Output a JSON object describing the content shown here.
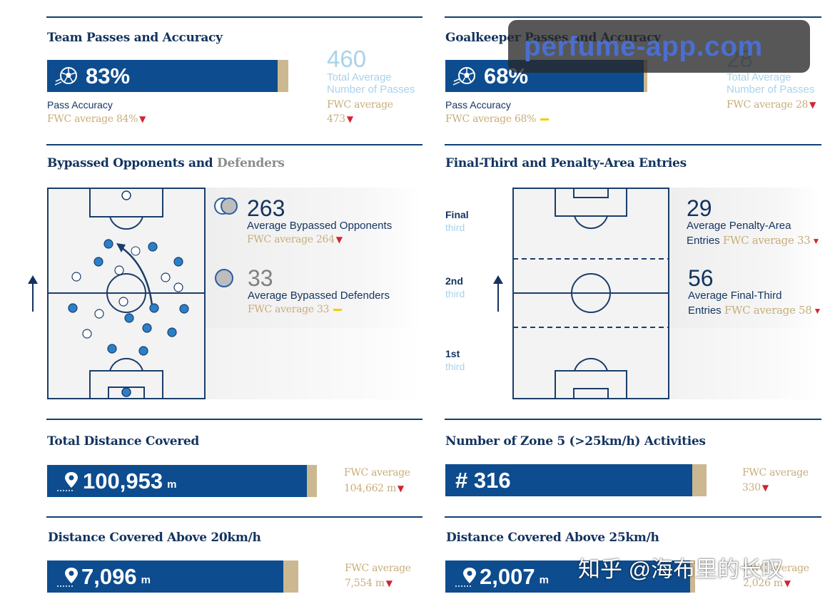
{
  "team_passes": {
    "title": "Team Passes and Accuracy",
    "accuracy": "83%",
    "accuracy_pct": 83,
    "accuracy_label": "Pass Accuracy",
    "accuracy_fwc": "FWC average 84%",
    "total_passes": "460",
    "total_passes_label_1": "Total Average",
    "total_passes_label_2": "Number of Passes",
    "passes_fwc_label": "FWC average",
    "passes_fwc_value": "473"
  },
  "gk_passes": {
    "title": "Goalkeeper Passes and Accuracy",
    "accuracy": "68%",
    "accuracy_pct": 68,
    "accuracy_label": "Pass Accuracy",
    "accuracy_fwc": "FWC average 68%",
    "total_passes": "28",
    "total_passes_label_1": "Total Average",
    "total_passes_label_2": "Number of Passes",
    "passes_fwc": "FWC average 28"
  },
  "bypassed": {
    "title_main": "Bypassed Opponents and",
    "title_grey": "Defenders",
    "opponents_value": "263",
    "opponents_label": "Average Bypassed Opponents",
    "opponents_fwc": "FWC average 264",
    "defenders_value": "33",
    "defenders_label": "Average Bypassed Defenders",
    "defenders_fwc": "FWC average 33"
  },
  "entries": {
    "title": "Final-Third and Penalty-Area Entries",
    "third_final": "Final",
    "third_2nd": "2nd",
    "third_1st": "1st",
    "third_word": "third",
    "penalty_value": "29",
    "penalty_label_1": "Average Penalty-Area",
    "penalty_label_2": "Entries",
    "penalty_fwc": "FWC average 33",
    "final_third_value": "56",
    "final_third_label_1": "Average Final-Third",
    "final_third_label_2": "Entries",
    "final_third_fwc": "FWC average 58"
  },
  "distance": {
    "title": "Total Distance Covered",
    "value": "100,953",
    "unit": "m",
    "fwc_label": "FWC average",
    "fwc_value": "104,662 m"
  },
  "zone5": {
    "title": "Number of Zone 5 (>25km/h) Activities",
    "value": "# 316",
    "fwc_label": "FWC average",
    "fwc_value": "330"
  },
  "dist20": {
    "title": "Distance Covered Above 20km/h",
    "value": "7,096",
    "unit": "m",
    "fwc_label": "FWC average",
    "fwc_value": "7,554 m"
  },
  "dist25": {
    "title": "Distance Covered Above 25km/h",
    "value": "2,007",
    "unit": "m",
    "fwc_label": "FWC average",
    "fwc_value": "2,026 m"
  },
  "watermark": {
    "text": "perfume-app.com",
    "zhihu": "知乎 @海布里的长叹"
  },
  "colors": {
    "navy": "#0d4c8f",
    "gold": "#cbb890",
    "light_blue": "#a8d3ea",
    "red_arrow": "#d1242f",
    "yellow_flat": "#f0d000"
  }
}
